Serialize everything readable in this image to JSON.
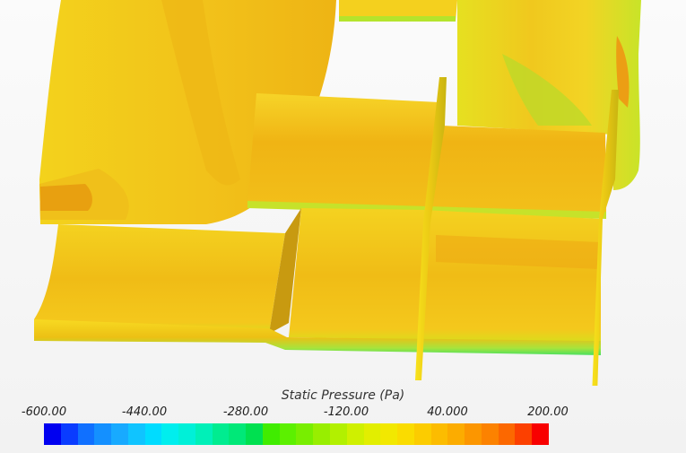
{
  "legend": {
    "title": "Static Pressure (Pa)",
    "ticks": [
      "-600.00",
      "-440.00",
      "-280.00",
      "-120.00",
      "40.000",
      "200.00"
    ],
    "colors": [
      "#0000f0",
      "#0a3cff",
      "#1070ff",
      "#1490ff",
      "#18aaff",
      "#10c4ff",
      "#00dcff",
      "#00eeee",
      "#00f0d8",
      "#00f0b8",
      "#00ec90",
      "#00e878",
      "#00e050",
      "#40ec00",
      "#5cf000",
      "#78ee00",
      "#98ee00",
      "#b2f000",
      "#cff000",
      "#e2ee00",
      "#f2e800",
      "#fadc00",
      "#fccc00",
      "#fcbc00",
      "#fcac00",
      "#fc9600",
      "#fc8200",
      "#fc6800",
      "#fc4000",
      "#f80000"
    ]
  }
}
